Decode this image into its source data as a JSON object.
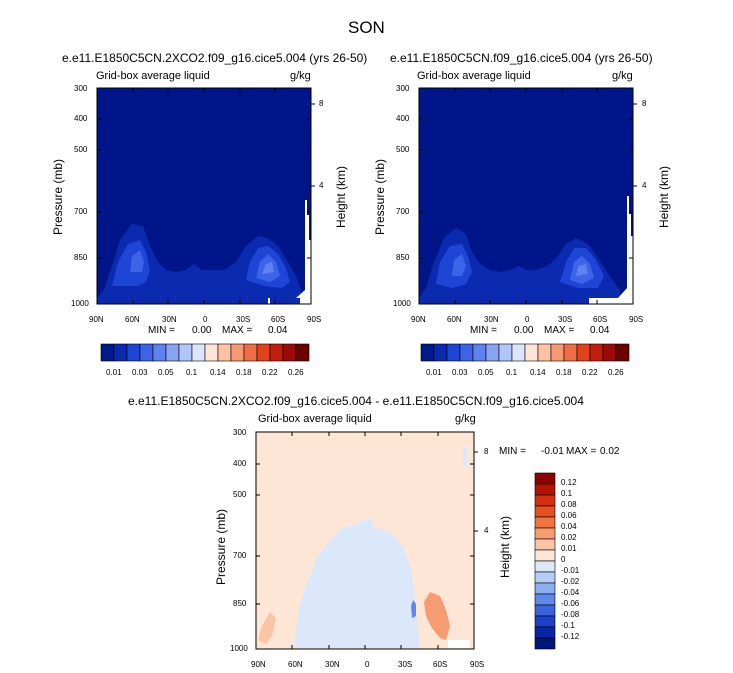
{
  "figure": {
    "title": "SON"
  },
  "chart_data": [
    {
      "type": "heatmap",
      "title": "e.e11.E1850C5CN.2XCO2.f09_g16.cice5.004 (yrs 26-50)",
      "variable": "Grid-box average liquid",
      "units": "g/kg",
      "ylabel": "Pressure (mb)",
      "ylabel_right": "Height (km)",
      "x_ticks": [
        "90N",
        "60N",
        "30N",
        "0",
        "30S",
        "60S",
        "90S"
      ],
      "y_ticks": [
        "300",
        "400",
        "500",
        "700",
        "850",
        "1000"
      ],
      "y_right_ticks": [
        "8",
        "4"
      ],
      "ylim": [
        1000,
        300
      ],
      "y_log": true,
      "min_label": "MIN =",
      "min_value": "0.00",
      "max_label": "MAX =",
      "max_value": "0.04",
      "colorbar": {
        "orientation": "horizontal",
        "labels": [
          "0.01",
          "0.03",
          "0.05",
          "0.1",
          "0.14",
          "0.18",
          "0.22",
          "0.26"
        ],
        "colors": [
          "#001a8c",
          "#0a2bb0",
          "#1f45d6",
          "#3d63e6",
          "#5f82ee",
          "#86a4f3",
          "#b0c6f8",
          "#dbe6fb",
          "#fde4d6",
          "#fbc2a6",
          "#f79a74",
          "#ef6e45",
          "#e0421e",
          "#c21d0d",
          "#9c0c06",
          "#6e0000"
        ]
      }
    },
    {
      "type": "heatmap",
      "title": "e.e11.E1850C5CN.f09_g16.cice5.004 (yrs 26-50)",
      "variable": "Grid-box average liquid",
      "units": "g/kg",
      "ylabel": "Pressure (mb)",
      "ylabel_right": "Height (km)",
      "x_ticks": [
        "90N",
        "60N",
        "30N",
        "0",
        "30S",
        "60S",
        "90S"
      ],
      "y_ticks": [
        "300",
        "400",
        "500",
        "700",
        "850",
        "1000"
      ],
      "y_right_ticks": [
        "8",
        "4"
      ],
      "ylim": [
        1000,
        300
      ],
      "y_log": true,
      "min_label": "MIN =",
      "min_value": "0.00",
      "max_label": "MAX =",
      "max_value": "0.04",
      "colorbar": {
        "orientation": "horizontal",
        "labels": [
          "0.01",
          "0.03",
          "0.05",
          "0.1",
          "0.14",
          "0.18",
          "0.22",
          "0.26"
        ],
        "colors": [
          "#001a8c",
          "#0a2bb0",
          "#1f45d6",
          "#3d63e6",
          "#5f82ee",
          "#86a4f3",
          "#b0c6f8",
          "#dbe6fb",
          "#fde4d6",
          "#fbc2a6",
          "#f79a74",
          "#ef6e45",
          "#e0421e",
          "#c21d0d",
          "#9c0c06",
          "#6e0000"
        ]
      }
    },
    {
      "type": "heatmap",
      "title": "e.e11.E1850C5CN.2XCO2.f09_g16.cice5.004 - e.e11.E1850C5CN.f09_g16.cice5.004",
      "variable": "Grid-box average liquid",
      "units": "g/kg",
      "ylabel": "Pressure (mb)",
      "ylabel_right": "Height (km)",
      "x_ticks": [
        "90N",
        "60N",
        "30N",
        "0",
        "30S",
        "60S",
        "90S"
      ],
      "y_ticks": [
        "300",
        "400",
        "500",
        "700",
        "850",
        "1000"
      ],
      "y_right_ticks": [
        "8",
        "4"
      ],
      "ylim": [
        1000,
        300
      ],
      "y_log": true,
      "min_label": "MIN =",
      "min_value": "-0.01",
      "max_label": "MAX =",
      "max_value": "0.02",
      "colorbar": {
        "orientation": "vertical",
        "labels": [
          "0.12",
          "0.1",
          "0.08",
          "0.06",
          "0.04",
          "0.02",
          "0.01",
          "0",
          "-0.01",
          "-0.02",
          "-0.04",
          "-0.06",
          "-0.08",
          "-0.1",
          "-0.12"
        ],
        "colors": [
          "#8b0000",
          "#b31406",
          "#d2300e",
          "#e6521f",
          "#f07540",
          "#f79c70",
          "#fbc4a5",
          "#fde6d6",
          "#dbe7fb",
          "#b4cdf6",
          "#8badf2",
          "#5f88ea",
          "#3a63dc",
          "#1d40c4",
          "#0a25a4",
          "#00157a"
        ]
      }
    }
  ]
}
